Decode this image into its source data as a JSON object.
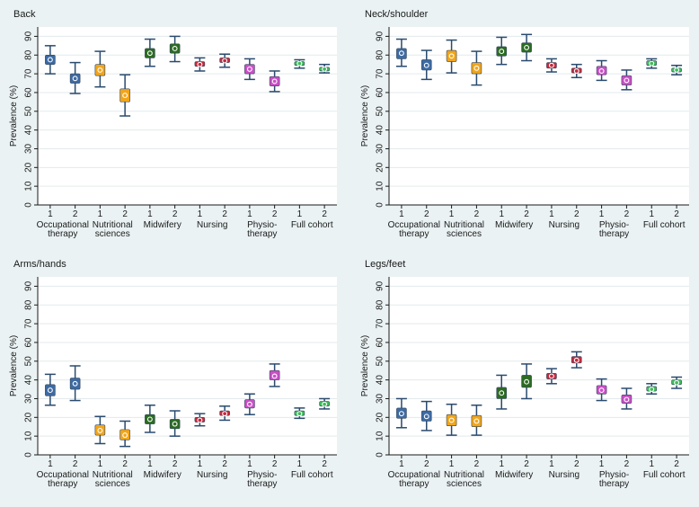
{
  "chart_data": [
    {
      "type": "box",
      "title": "Back",
      "ylabel": "Prevalence (%)",
      "ylim": [
        0,
        95
      ],
      "yticks": [
        0,
        10,
        20,
        30,
        40,
        50,
        60,
        70,
        80,
        90
      ],
      "x_level_labels": [
        "1",
        "2",
        "1",
        "2",
        "1",
        "2",
        "1",
        "2",
        "1",
        "2",
        "1",
        "2"
      ],
      "groups": [
        {
          "label": "Occupational therapy",
          "lines": [
            "Occupational",
            "therapy"
          ]
        },
        {
          "label": "Nutritional sciences",
          "lines": [
            "Nutritional",
            "sciences"
          ]
        },
        {
          "label": "Midwifery",
          "lines": [
            "Midwifery"
          ]
        },
        {
          "label": "Nursing",
          "lines": [
            "Nursing"
          ]
        },
        {
          "label": "Physiotherapy",
          "lines": [
            "Physio-",
            "therapy"
          ]
        },
        {
          "label": "Full cohort",
          "lines": [
            "Full cohort"
          ]
        }
      ],
      "series": [
        {
          "group": "Occupational therapy",
          "level": "1",
          "estimate": 77.5,
          "ci": [
            70,
            85
          ],
          "box": [
            75,
            80
          ]
        },
        {
          "group": "Occupational therapy",
          "level": "2",
          "estimate": 67.5,
          "ci": [
            59.5,
            76
          ],
          "box": [
            65,
            70
          ]
        },
        {
          "group": "Nutritional sciences",
          "level": "1",
          "estimate": 72,
          "ci": [
            63,
            82
          ],
          "box": [
            69,
            75
          ]
        },
        {
          "group": "Nutritional sciences",
          "level": "2",
          "estimate": 58.5,
          "ci": [
            47.5,
            69.5
          ],
          "box": [
            55,
            62
          ]
        },
        {
          "group": "Midwifery",
          "level": "1",
          "estimate": 81,
          "ci": [
            74,
            88.5
          ],
          "box": [
            78.5,
            83.5
          ]
        },
        {
          "group": "Midwifery",
          "level": "2",
          "estimate": 83.5,
          "ci": [
            76.5,
            90
          ],
          "box": [
            81,
            86
          ]
        },
        {
          "group": "Nursing",
          "level": "1",
          "estimate": 75,
          "ci": [
            71.5,
            78.5
          ],
          "box": [
            74,
            76.5
          ]
        },
        {
          "group": "Nursing",
          "level": "2",
          "estimate": 77,
          "ci": [
            73.5,
            80.5
          ],
          "box": [
            76,
            78.5
          ]
        },
        {
          "group": "Physiotherapy",
          "level": "1",
          "estimate": 72.5,
          "ci": [
            67,
            78
          ],
          "box": [
            70,
            75
          ]
        },
        {
          "group": "Physiotherapy",
          "level": "2",
          "estimate": 66,
          "ci": [
            60.5,
            71.5
          ],
          "box": [
            63.5,
            68.5
          ]
        },
        {
          "group": "Full cohort",
          "level": "1",
          "estimate": 75.5,
          "ci": [
            73,
            77.5
          ],
          "box": [
            74.5,
            76.5
          ]
        },
        {
          "group": "Full cohort",
          "level": "2",
          "estimate": 72.5,
          "ci": [
            70.5,
            75
          ],
          "box": [
            71.5,
            73.5
          ]
        }
      ]
    },
    {
      "type": "box",
      "title": "Neck/shoulder",
      "ylabel": "Prevalence (%)",
      "ylim": [
        0,
        95
      ],
      "yticks": [
        0,
        10,
        20,
        30,
        40,
        50,
        60,
        70,
        80,
        90
      ],
      "x_level_labels": [
        "1",
        "2",
        "1",
        "2",
        "1",
        "2",
        "1",
        "2",
        "1",
        "2",
        "1",
        "2"
      ],
      "groups": [
        {
          "label": "Occupational therapy",
          "lines": [
            "Occupational",
            "therapy"
          ]
        },
        {
          "label": "Nutritional sciences",
          "lines": [
            "Nutritional",
            "sciences"
          ]
        },
        {
          "label": "Midwifery",
          "lines": [
            "Midwifery"
          ]
        },
        {
          "label": "Nursing",
          "lines": [
            "Nursing"
          ]
        },
        {
          "label": "Physiotherapy",
          "lines": [
            "Physio-",
            "therapy"
          ]
        },
        {
          "label": "Full cohort",
          "lines": [
            "Full cohort"
          ]
        }
      ],
      "series": [
        {
          "group": "Occupational therapy",
          "level": "1",
          "estimate": 81,
          "ci": [
            74,
            88.5
          ],
          "box": [
            78,
            83.5
          ]
        },
        {
          "group": "Occupational therapy",
          "level": "2",
          "estimate": 74.5,
          "ci": [
            67,
            82.5
          ],
          "box": [
            72,
            77.5
          ]
        },
        {
          "group": "Nutritional sciences",
          "level": "1",
          "estimate": 79.5,
          "ci": [
            70.5,
            88
          ],
          "box": [
            76.5,
            82.5
          ]
        },
        {
          "group": "Nutritional sciences",
          "level": "2",
          "estimate": 73,
          "ci": [
            64,
            82
          ],
          "box": [
            70,
            76
          ]
        },
        {
          "group": "Midwifery",
          "level": "1",
          "estimate": 82,
          "ci": [
            75,
            89.5
          ],
          "box": [
            79.5,
            84.5
          ]
        },
        {
          "group": "Midwifery",
          "level": "2",
          "estimate": 84,
          "ci": [
            77,
            91
          ],
          "box": [
            81.5,
            86.5
          ]
        },
        {
          "group": "Nursing",
          "level": "1",
          "estimate": 74.5,
          "ci": [
            71,
            78
          ],
          "box": [
            73,
            76
          ]
        },
        {
          "group": "Nursing",
          "level": "2",
          "estimate": 71.5,
          "ci": [
            68,
            75
          ],
          "box": [
            70.5,
            73
          ]
        },
        {
          "group": "Physiotherapy",
          "level": "1",
          "estimate": 71.5,
          "ci": [
            66.5,
            77
          ],
          "box": [
            69.5,
            74
          ]
        },
        {
          "group": "Physiotherapy",
          "level": "2",
          "estimate": 66.5,
          "ci": [
            61.5,
            72
          ],
          "box": [
            64,
            69
          ]
        },
        {
          "group": "Full cohort",
          "level": "1",
          "estimate": 75.5,
          "ci": [
            73,
            78
          ],
          "box": [
            74.5,
            77
          ]
        },
        {
          "group": "Full cohort",
          "level": "2",
          "estimate": 72,
          "ci": [
            69.5,
            74.5
          ],
          "box": [
            71,
            73
          ]
        }
      ]
    },
    {
      "type": "box",
      "title": "Arms/hands",
      "ylabel": "Prevalence (%)",
      "ylim": [
        0,
        95
      ],
      "yticks": [
        0,
        10,
        20,
        30,
        40,
        50,
        60,
        70,
        80,
        90
      ],
      "x_level_labels": [
        "1",
        "2",
        "1",
        "2",
        "1",
        "2",
        "1",
        "2",
        "1",
        "2",
        "1",
        "2"
      ],
      "groups": [
        {
          "label": "Occupational therapy",
          "lines": [
            "Occupational",
            "therapy"
          ]
        },
        {
          "label": "Nutritional sciences",
          "lines": [
            "Nutritional",
            "sciences"
          ]
        },
        {
          "label": "Midwifery",
          "lines": [
            "Midwifery"
          ]
        },
        {
          "label": "Nursing",
          "lines": [
            "Nursing"
          ]
        },
        {
          "label": "Physiotherapy",
          "lines": [
            "Physio-",
            "therapy"
          ]
        },
        {
          "label": "Full cohort",
          "lines": [
            "Full cohort"
          ]
        }
      ],
      "series": [
        {
          "group": "Occupational therapy",
          "level": "1",
          "estimate": 34.5,
          "ci": [
            26.5,
            43
          ],
          "box": [
            31.5,
            37.5
          ]
        },
        {
          "group": "Occupational therapy",
          "level": "2",
          "estimate": 38,
          "ci": [
            29,
            47.5
          ],
          "box": [
            35,
            41
          ]
        },
        {
          "group": "Nutritional sciences",
          "level": "1",
          "estimate": 13,
          "ci": [
            6,
            20.5
          ],
          "box": [
            10.5,
            16
          ]
        },
        {
          "group": "Nutritional sciences",
          "level": "2",
          "estimate": 10.5,
          "ci": [
            4.5,
            18
          ],
          "box": [
            8,
            13.5
          ]
        },
        {
          "group": "Midwifery",
          "level": "1",
          "estimate": 19,
          "ci": [
            12,
            26.5
          ],
          "box": [
            16.5,
            21.5
          ]
        },
        {
          "group": "Midwifery",
          "level": "2",
          "estimate": 16.5,
          "ci": [
            10,
            23.5
          ],
          "box": [
            14,
            19
          ]
        },
        {
          "group": "Nursing",
          "level": "1",
          "estimate": 18.5,
          "ci": [
            15.5,
            22
          ],
          "box": [
            17.5,
            20
          ]
        },
        {
          "group": "Nursing",
          "level": "2",
          "estimate": 22,
          "ci": [
            18.5,
            26
          ],
          "box": [
            21,
            23.5
          ]
        },
        {
          "group": "Physiotherapy",
          "level": "1",
          "estimate": 27,
          "ci": [
            21.5,
            32.5
          ],
          "box": [
            25,
            29.5
          ]
        },
        {
          "group": "Physiotherapy",
          "level": "2",
          "estimate": 42,
          "ci": [
            36.5,
            48.5
          ],
          "box": [
            40,
            45
          ]
        },
        {
          "group": "Full cohort",
          "level": "1",
          "estimate": 22,
          "ci": [
            19.5,
            25
          ],
          "box": [
            21,
            23.5
          ]
        },
        {
          "group": "Full cohort",
          "level": "2",
          "estimate": 27,
          "ci": [
            24.5,
            30
          ],
          "box": [
            26,
            28.5
          ]
        }
      ]
    },
    {
      "type": "box",
      "title": "Legs/feet",
      "ylabel": "Prevalence (%)",
      "ylim": [
        0,
        95
      ],
      "yticks": [
        0,
        10,
        20,
        30,
        40,
        50,
        60,
        70,
        80,
        90
      ],
      "x_level_labels": [
        "1",
        "2",
        "1",
        "2",
        "1",
        "2",
        "1",
        "2",
        "1",
        "2",
        "1",
        "2"
      ],
      "groups": [
        {
          "label": "Occupational therapy",
          "lines": [
            "Occupational",
            "therapy"
          ]
        },
        {
          "label": "Nutritional sciences",
          "lines": [
            "Nutritional",
            "sciences"
          ]
        },
        {
          "label": "Midwifery",
          "lines": [
            "Midwifery"
          ]
        },
        {
          "label": "Nursing",
          "lines": [
            "Nursing"
          ]
        },
        {
          "label": "Physiotherapy",
          "lines": [
            "Physio-",
            "therapy"
          ]
        },
        {
          "label": "Full cohort",
          "lines": [
            "Full cohort"
          ]
        }
      ],
      "series": [
        {
          "group": "Occupational therapy",
          "level": "1",
          "estimate": 22,
          "ci": [
            14.5,
            30
          ],
          "box": [
            19.5,
            25
          ]
        },
        {
          "group": "Occupational therapy",
          "level": "2",
          "estimate": 20.5,
          "ci": [
            13,
            28.5
          ],
          "box": [
            18,
            23.5
          ]
        },
        {
          "group": "Nutritional sciences",
          "level": "1",
          "estimate": 18.5,
          "ci": [
            10.5,
            27
          ],
          "box": [
            15.5,
            21.5
          ]
        },
        {
          "group": "Nutritional sciences",
          "level": "2",
          "estimate": 18,
          "ci": [
            10.5,
            26.5
          ],
          "box": [
            15,
            21
          ]
        },
        {
          "group": "Midwifery",
          "level": "1",
          "estimate": 33,
          "ci": [
            24.5,
            42.5
          ],
          "box": [
            30,
            36
          ]
        },
        {
          "group": "Midwifery",
          "level": "2",
          "estimate": 39,
          "ci": [
            30,
            48.5
          ],
          "box": [
            36,
            42.5
          ]
        },
        {
          "group": "Nursing",
          "level": "1",
          "estimate": 42,
          "ci": [
            38,
            46
          ],
          "box": [
            40.5,
            43.5
          ]
        },
        {
          "group": "Nursing",
          "level": "2",
          "estimate": 50.5,
          "ci": [
            46.5,
            55
          ],
          "box": [
            49,
            52.5
          ]
        },
        {
          "group": "Physiotherapy",
          "level": "1",
          "estimate": 34.5,
          "ci": [
            29,
            40.5
          ],
          "box": [
            32.5,
            37
          ]
        },
        {
          "group": "Physiotherapy",
          "level": "2",
          "estimate": 29.5,
          "ci": [
            24.5,
            35.5
          ],
          "box": [
            27.5,
            32
          ]
        },
        {
          "group": "Full cohort",
          "level": "1",
          "estimate": 35,
          "ci": [
            32.5,
            38
          ],
          "box": [
            34,
            36.5
          ]
        },
        {
          "group": "Full cohort",
          "level": "2",
          "estimate": 38.5,
          "ci": [
            35.5,
            41.5
          ],
          "box": [
            37.5,
            40
          ]
        }
      ]
    }
  ],
  "style": {
    "background": "#eaf2f3",
    "plot_background": "#ffffff",
    "grid": "#e3eaec",
    "axis": "#1a1a1a",
    "group_colors": {
      "Occupational therapy": "#3d6aa3",
      "Nutritional sciences": "#f2a51a",
      "Midwifery": "#2c6b23",
      "Nursing": "#c8283c",
      "Physiotherapy": "#cc4fc8",
      "Full cohort": "#3dbd5a"
    }
  }
}
